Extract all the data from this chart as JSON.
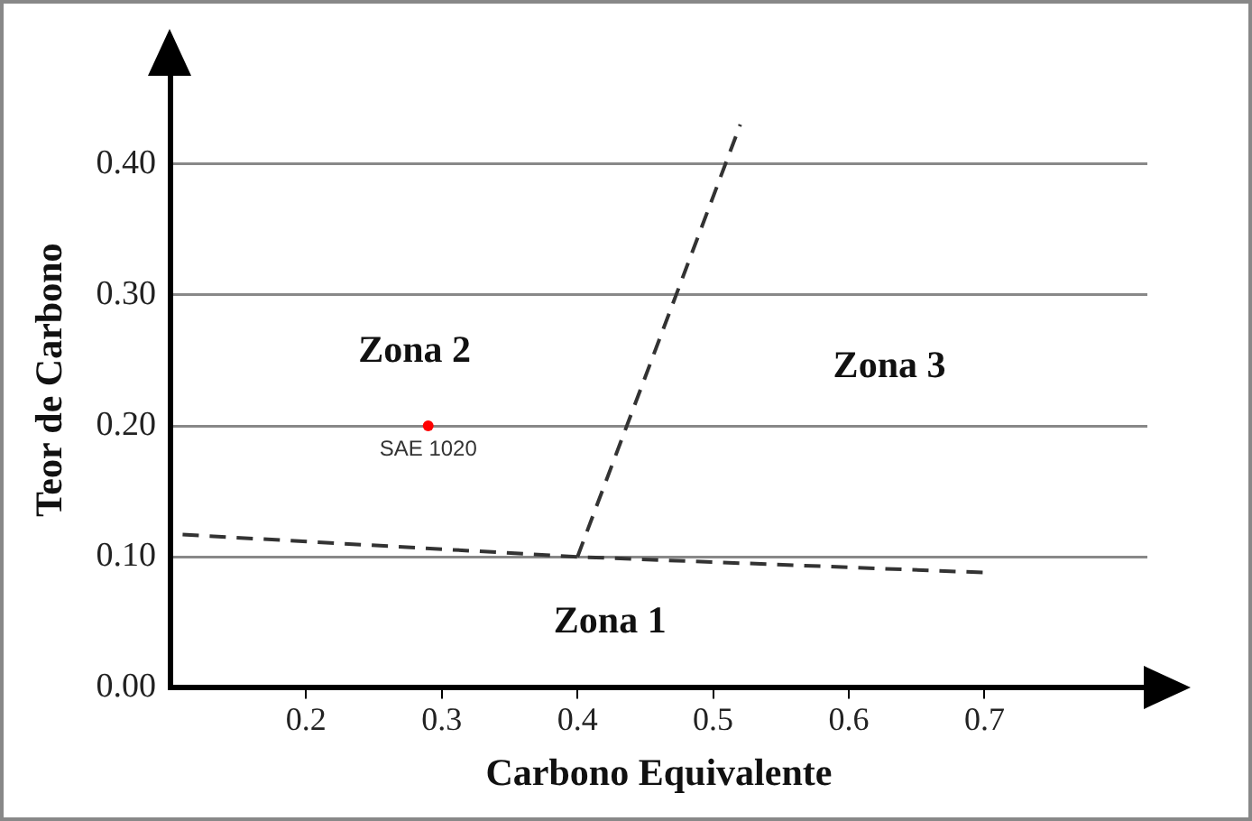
{
  "chart_data": {
    "type": "line",
    "xlabel": "Carbono Equivalente",
    "ylabel": "Teor de Carbono",
    "xlim": [
      0.1,
      0.82
    ],
    "ylim": [
      0,
      0.47
    ],
    "xticks": [
      0.2,
      0.3,
      0.4,
      0.5,
      0.6,
      0.7
    ],
    "yticks": [
      {
        "value": 0,
        "label": "0.00"
      },
      {
        "value": 0.1,
        "label": "0.10"
      },
      {
        "value": 0.2,
        "label": "0.20"
      },
      {
        "value": 0.3,
        "label": "0.30"
      },
      {
        "value": 0.4,
        "label": "0.40"
      }
    ],
    "grid": "y",
    "legend": false,
    "series": [
      {
        "x": [
          0.109,
          0.4,
          0.7
        ],
        "values": [
          0.117,
          0.1,
          0.088
        ],
        "color": "#333333",
        "line_style": "dashed",
        "marker": "none"
      },
      {
        "x": [
          0.4,
          0.52
        ],
        "values": [
          0.1,
          0.43
        ],
        "color": "#333333",
        "line_style": "dashed",
        "marker": "none"
      },
      {
        "type": "scatter",
        "name": "SAE 1020",
        "x": [
          0.29
        ],
        "values": [
          0.2
        ],
        "color": "#ff0000",
        "marker": "circle"
      }
    ],
    "annotations": [
      "Zona 1",
      "Zona 2",
      "Zona 3"
    ]
  }
}
